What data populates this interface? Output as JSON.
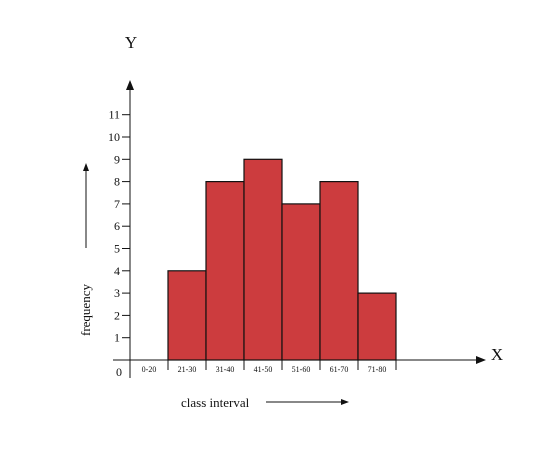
{
  "chart_data": {
    "type": "bar",
    "categories": [
      "0-20",
      "21-30",
      "31-40",
      "41-50",
      "51-60",
      "61-70",
      "71-80"
    ],
    "values": [
      0,
      4,
      8,
      9,
      7,
      8,
      3
    ],
    "origin_label": "0",
    "y_ticks": [
      "1",
      "2",
      "3",
      "4",
      "5",
      "6",
      "7",
      "8",
      "9",
      "10",
      "11"
    ],
    "ylim": [
      0,
      11
    ],
    "x_axis_letter": "X",
    "y_axis_letter": "Y",
    "xlabel": "class interval",
    "ylabel": "frequency",
    "grid": false,
    "colors": {
      "bar_fill": "#cc3c3e",
      "bar_stroke": "#111111",
      "axis": "#111111"
    }
  }
}
